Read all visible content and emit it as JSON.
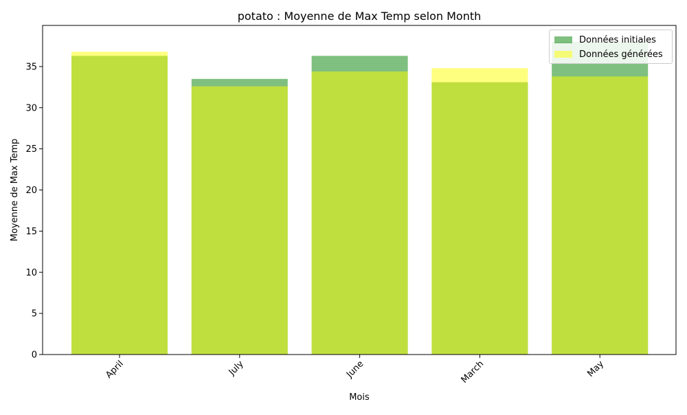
{
  "chart_data": {
    "type": "bar",
    "title": "potato : Moyenne de Max Temp selon Month",
    "xlabel": "Mois",
    "ylabel": "Moyenne de Max Temp",
    "categories": [
      "April",
      "July",
      "June",
      "March",
      "May"
    ],
    "ylim": [
      0,
      40
    ],
    "yticks": [
      0,
      5,
      10,
      15,
      20,
      25,
      30,
      35
    ],
    "series": [
      {
        "name": "Données initiales",
        "values": [
          36.3,
          33.5,
          36.3,
          33.1,
          38.0
        ],
        "color": "#008000",
        "opacity": 0.5
      },
      {
        "name": "Données générées",
        "values": [
          36.8,
          32.6,
          34.4,
          34.8,
          33.8
        ],
        "color": "#ffff00",
        "opacity": 0.5
      }
    ],
    "legend": "top-right",
    "grid": false
  }
}
